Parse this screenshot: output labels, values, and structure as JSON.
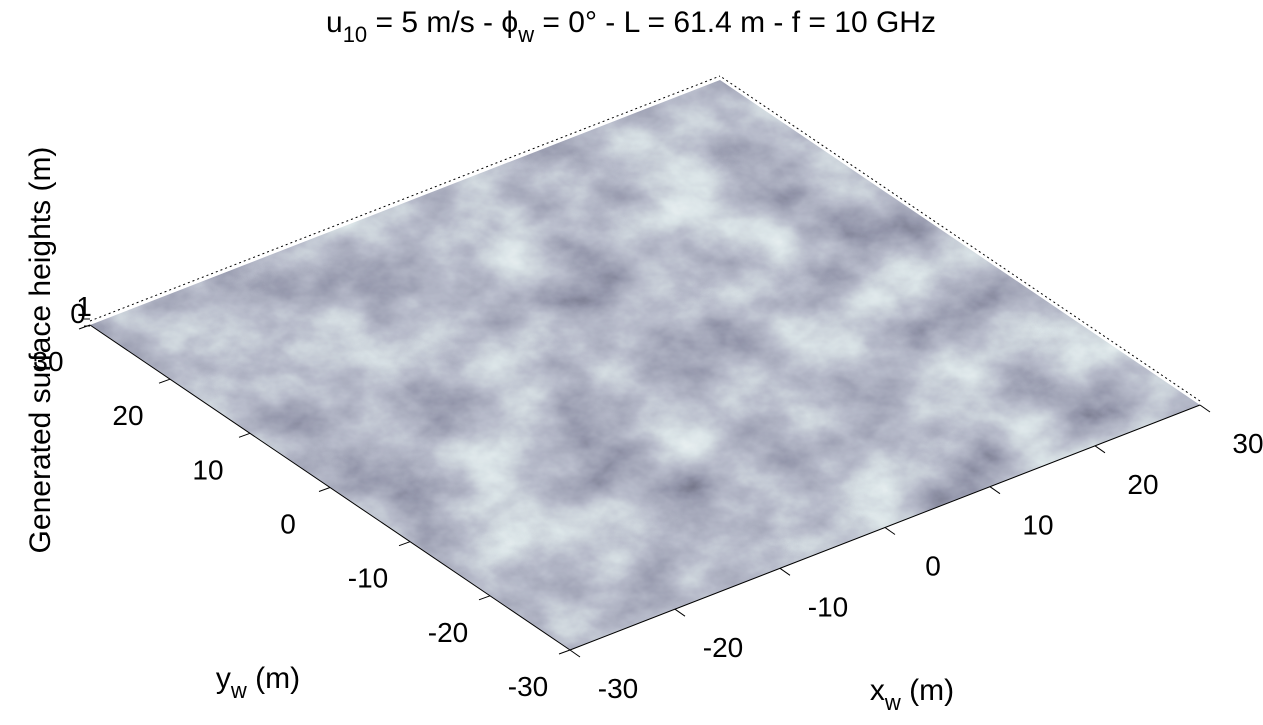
{
  "chart_data": {
    "type": "surface3d",
    "title": [
      {
        "text": "u"
      },
      {
        "text": "10",
        "sub": true
      },
      {
        "text": " = 5 m/s - "
      },
      {
        "text": "ϕ"
      },
      {
        "text": "w",
        "sub": true
      },
      {
        "text": " = 0° - L = 61.4 m - f = 10 GHz"
      }
    ],
    "xlabel": [
      {
        "text": "x"
      },
      {
        "text": "w",
        "sub": true
      },
      {
        "text": " (m)"
      }
    ],
    "ylabel": [
      {
        "text": "y"
      },
      {
        "text": "w",
        "sub": true
      },
      {
        "text": " (m)"
      }
    ],
    "zlabel": "Generated surface heights (m)",
    "xlim": [
      -30,
      30
    ],
    "ylim": [
      -30,
      30
    ],
    "zlim": [
      -1,
      1
    ],
    "xticks": [
      -30,
      -20,
      -10,
      0,
      10,
      20,
      30
    ],
    "yticks": [
      -30,
      -20,
      -10,
      0,
      10,
      20,
      30
    ],
    "zticks": [
      0,
      1
    ],
    "colormap": [
      "#151520",
      "#4a4d66",
      "#7a8098",
      "#b4c6cc",
      "#eef8f8"
    ]
  }
}
